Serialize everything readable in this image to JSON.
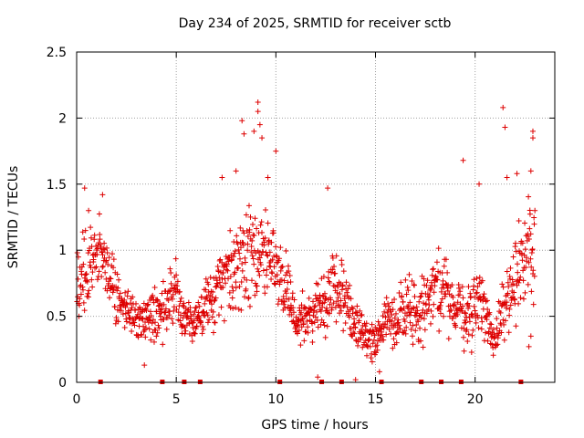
{
  "chart_data": {
    "type": "scatter",
    "title": "Day 234 of 2025, SRMTID for receiver sctb",
    "xlabel": "GPS time / hours",
    "ylabel": "SRMTID / TECUs",
    "xlim": [
      0,
      24
    ],
    "ylim": [
      0,
      2.5
    ],
    "xticks": [
      0,
      5,
      10,
      15,
      20
    ],
    "xtick_labels": [
      "0",
      "5",
      "10",
      "15",
      "20"
    ],
    "yticks": [
      0,
      0.5,
      1,
      1.5,
      2,
      2.5
    ],
    "ytick_labels": [
      "0",
      "0.5",
      "1",
      "1.5",
      "2",
      "2.5"
    ],
    "grid": true,
    "marker": "+",
    "color": "#dd0000",
    "series": [
      {
        "name": "SRMTID",
        "envelope": {
          "x": [
            0,
            0.5,
            1,
            1.5,
            2,
            2.5,
            3,
            3.5,
            4,
            4.5,
            5,
            5.5,
            6,
            6.5,
            7,
            7.5,
            8,
            8.5,
            9,
            9.5,
            10,
            10.5,
            11,
            11.5,
            12,
            12.5,
            13,
            13.5,
            14,
            14.5,
            15,
            15.5,
            16,
            16.5,
            17,
            17.5,
            18,
            18.5,
            19,
            19.5,
            20,
            20.5,
            21,
            21.5,
            22,
            22.5
          ],
          "center": [
            0.75,
            0.85,
            0.95,
            0.9,
            0.6,
            0.55,
            0.5,
            0.5,
            0.55,
            0.55,
            0.7,
            0.5,
            0.45,
            0.6,
            0.7,
            0.8,
            0.85,
            0.95,
            1.0,
            0.95,
            0.85,
            0.7,
            0.5,
            0.5,
            0.55,
            0.6,
            0.75,
            0.6,
            0.45,
            0.35,
            0.3,
            0.45,
            0.45,
            0.55,
            0.55,
            0.6,
            0.65,
            0.75,
            0.5,
            0.55,
            0.6,
            0.5,
            0.3,
            0.65,
            0.75,
            1.0
          ],
          "spread": [
            0.3,
            0.4,
            0.35,
            0.3,
            0.25,
            0.2,
            0.2,
            0.2,
            0.25,
            0.3,
            0.3,
            0.2,
            0.2,
            0.25,
            0.3,
            0.35,
            0.4,
            0.45,
            0.5,
            0.45,
            0.35,
            0.3,
            0.25,
            0.2,
            0.25,
            0.3,
            0.35,
            0.3,
            0.2,
            0.15,
            0.15,
            0.2,
            0.25,
            0.3,
            0.3,
            0.3,
            0.35,
            0.35,
            0.25,
            0.35,
            0.4,
            0.3,
            0.2,
            0.35,
            0.4,
            0.45
          ]
        },
        "points": [
          [
            0.4,
            1.47
          ],
          [
            0.6,
            1.3
          ],
          [
            1.3,
            1.42
          ],
          [
            3.4,
            0.13
          ],
          [
            4.0,
            0.35
          ],
          [
            7.3,
            1.55
          ],
          [
            8.0,
            1.6
          ],
          [
            8.3,
            1.98
          ],
          [
            8.4,
            1.88
          ],
          [
            8.9,
            1.9
          ],
          [
            9.1,
            2.12
          ],
          [
            9.1,
            2.05
          ],
          [
            9.2,
            1.95
          ],
          [
            9.3,
            1.85
          ],
          [
            9.6,
            1.55
          ],
          [
            10.0,
            1.75
          ],
          [
            12.1,
            0.04
          ],
          [
            12.6,
            1.47
          ],
          [
            14.0,
            0.02
          ],
          [
            15.2,
            0.08
          ],
          [
            19.4,
            1.68
          ],
          [
            20.2,
            1.5
          ],
          [
            21.4,
            2.08
          ],
          [
            21.5,
            1.93
          ],
          [
            21.6,
            1.55
          ],
          [
            22.1,
            1.58
          ],
          [
            22.9,
            1.9
          ],
          [
            22.9,
            1.85
          ],
          [
            22.8,
            1.6
          ],
          [
            23.0,
            1.3
          ],
          [
            22.8,
            0.35
          ],
          [
            22.7,
            0.27
          ]
        ],
        "zero_points_x": [
          1.2,
          4.3,
          5.4,
          6.2,
          10.2,
          12.3,
          13.3,
          15.3,
          17.3,
          18.3,
          19.3,
          22.3
        ]
      }
    ]
  }
}
